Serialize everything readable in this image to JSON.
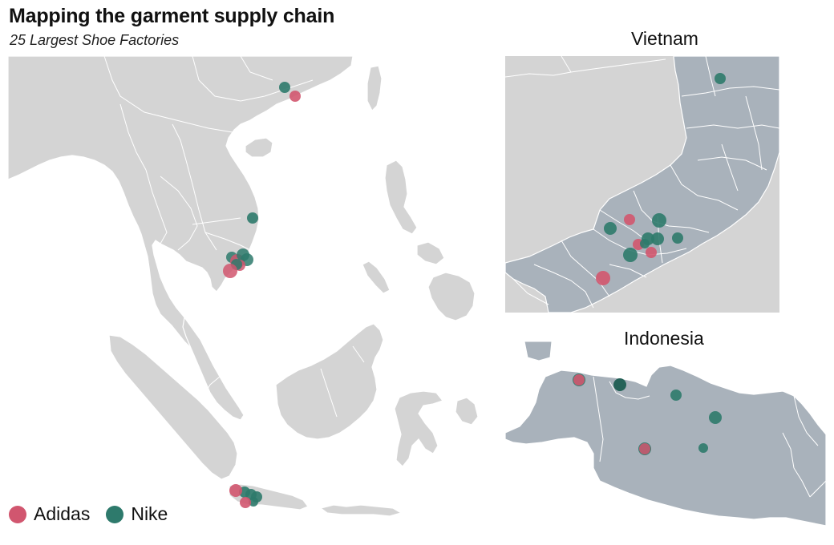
{
  "title": "Mapping the garment supply chain",
  "subtitle": "25 Largest Shoe Factories",
  "insets": {
    "vietnam": {
      "title": "Vietnam"
    },
    "indonesia": {
      "title": "Indonesia"
    }
  },
  "legend": [
    {
      "label": "Adidas",
      "color": "#d1566f"
    },
    {
      "label": "Nike",
      "color": "#2e7a6c"
    }
  ],
  "colors": {
    "land_main": "#d4d4d4",
    "land_inset_context": "#d4d4d4",
    "land_inset_focus": "#a9b2bb",
    "borders": "#ffffff",
    "water": "#ffffff"
  },
  "map_data": {
    "brands": [
      "Adidas",
      "Nike"
    ],
    "factory_count": 25,
    "regions": [
      "South China",
      "Vietnam",
      "Indonesia (Java)"
    ]
  }
}
